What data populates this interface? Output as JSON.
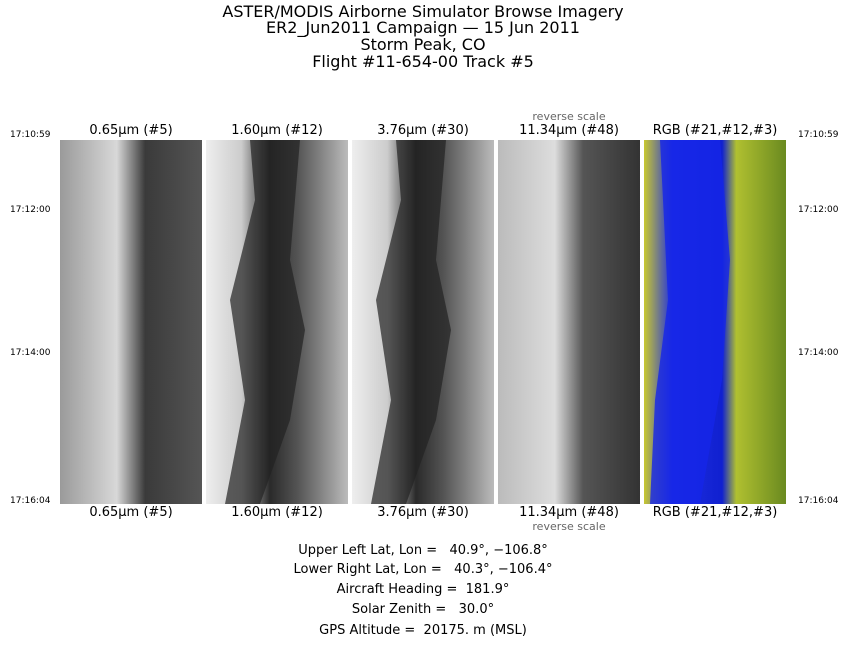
{
  "header": {
    "lines": [
      "ASTER/MODIS Airborne Simulator Browse Imagery",
      "ER2_Jun2011 Campaign — 15 Jun 2011",
      "Storm Peak, CO",
      "Flight #11-654-00 Track #5"
    ]
  },
  "panels": [
    {
      "label": "0.65μm (#5)"
    },
    {
      "label": "1.60μm (#12)"
    },
    {
      "label": "3.76μm (#30)"
    },
    {
      "label": "11.34μm (#48)",
      "note": "reverse scale"
    },
    {
      "label": "RGB (#21,#12,#3)"
    }
  ],
  "times": [
    "17:10:59",
    "17:12:00",
    "17:14:00",
    "17:16:04"
  ],
  "info": [
    "Upper Left Lat, Lon =   40.9°, −106.8°",
    "Lower Right Lat, Lon =   40.3°, −106.4°",
    "Aircraft Heading =  181.9°",
    "Solar Zenith =   30.0°",
    "GPS Altitude =  20175. m (MSL)"
  ]
}
